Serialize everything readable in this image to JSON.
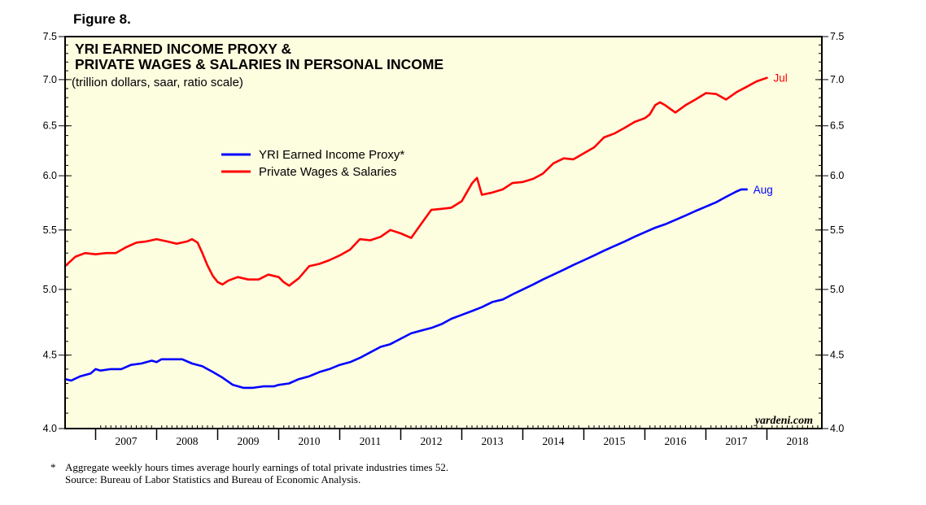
{
  "figure_label": "Figure 8.",
  "colors": {
    "plot_bg": "#fdfde0",
    "proxy": "#0000ff",
    "wages": "#ff0000"
  },
  "chart_data": {
    "type": "line",
    "title": "YRI EARNED INCOME PROXY &",
    "title_line2": "PRIVATE WAGES & SALARIES IN PERSONAL INCOME",
    "subtitle": "(trillion dollars, saar, ratio scale)",
    "y_scale": "log",
    "ylim": [
      4.0,
      7.5
    ],
    "yticks": [
      "4.0",
      "4.5",
      "5.0",
      "5.5",
      "6.0",
      "6.5",
      "7.0",
      "7.5"
    ],
    "xlim": [
      2006.5,
      2018.9
    ],
    "x_tick_labels": [
      "2007",
      "2008",
      "2009",
      "2010",
      "2011",
      "2012",
      "2013",
      "2014",
      "2015",
      "2016",
      "2017",
      "2018"
    ],
    "legend_position": "upper-left",
    "brand": "yardeni.com",
    "series": [
      {
        "name": "YRI Earned Income Proxy*",
        "color": "#0000ff",
        "end_label": "Aug",
        "points": [
          [
            2006.5,
            4.33
          ],
          [
            2006.6,
            4.32
          ],
          [
            2006.75,
            4.35
          ],
          [
            2006.92,
            4.37
          ],
          [
            2007.0,
            4.4
          ],
          [
            2007.08,
            4.39
          ],
          [
            2007.25,
            4.4
          ],
          [
            2007.42,
            4.4
          ],
          [
            2007.58,
            4.43
          ],
          [
            2007.75,
            4.44
          ],
          [
            2007.92,
            4.46
          ],
          [
            2008.0,
            4.45
          ],
          [
            2008.08,
            4.47
          ],
          [
            2008.25,
            4.47
          ],
          [
            2008.42,
            4.47
          ],
          [
            2008.58,
            4.44
          ],
          [
            2008.75,
            4.42
          ],
          [
            2008.92,
            4.38
          ],
          [
            2009.0,
            4.36
          ],
          [
            2009.08,
            4.34
          ],
          [
            2009.25,
            4.29
          ],
          [
            2009.42,
            4.27
          ],
          [
            2009.58,
            4.27
          ],
          [
            2009.75,
            4.28
          ],
          [
            2009.92,
            4.28
          ],
          [
            2010.0,
            4.29
          ],
          [
            2010.17,
            4.3
          ],
          [
            2010.33,
            4.33
          ],
          [
            2010.5,
            4.35
          ],
          [
            2010.67,
            4.38
          ],
          [
            2010.83,
            4.4
          ],
          [
            2011.0,
            4.43
          ],
          [
            2011.17,
            4.45
          ],
          [
            2011.33,
            4.48
          ],
          [
            2011.5,
            4.52
          ],
          [
            2011.67,
            4.56
          ],
          [
            2011.83,
            4.58
          ],
          [
            2012.0,
            4.62
          ],
          [
            2012.17,
            4.66
          ],
          [
            2012.33,
            4.68
          ],
          [
            2012.5,
            4.7
          ],
          [
            2012.67,
            4.73
          ],
          [
            2012.83,
            4.77
          ],
          [
            2013.0,
            4.8
          ],
          [
            2013.17,
            4.83
          ],
          [
            2013.33,
            4.86
          ],
          [
            2013.5,
            4.9
          ],
          [
            2013.67,
            4.92
          ],
          [
            2013.83,
            4.96
          ],
          [
            2014.0,
            5.0
          ],
          [
            2014.17,
            5.04
          ],
          [
            2014.33,
            5.08
          ],
          [
            2014.5,
            5.12
          ],
          [
            2014.67,
            5.16
          ],
          [
            2014.83,
            5.2
          ],
          [
            2015.0,
            5.24
          ],
          [
            2015.17,
            5.28
          ],
          [
            2015.33,
            5.32
          ],
          [
            2015.5,
            5.36
          ],
          [
            2015.67,
            5.4
          ],
          [
            2015.83,
            5.44
          ],
          [
            2016.0,
            5.48
          ],
          [
            2016.17,
            5.52
          ],
          [
            2016.33,
            5.55
          ],
          [
            2016.5,
            5.59
          ],
          [
            2016.67,
            5.63
          ],
          [
            2016.83,
            5.67
          ],
          [
            2017.0,
            5.71
          ],
          [
            2017.17,
            5.75
          ],
          [
            2017.33,
            5.8
          ],
          [
            2017.5,
            5.85
          ],
          [
            2017.58,
            5.87
          ],
          [
            2017.67,
            5.87
          ]
        ]
      },
      {
        "name": "Private Wages & Salaries",
        "color": "#ff0000",
        "end_label": "Jul",
        "points": [
          [
            2006.5,
            5.19
          ],
          [
            2006.67,
            5.27
          ],
          [
            2006.83,
            5.3
          ],
          [
            2007.0,
            5.29
          ],
          [
            2007.17,
            5.3
          ],
          [
            2007.33,
            5.3
          ],
          [
            2007.5,
            5.35
          ],
          [
            2007.67,
            5.39
          ],
          [
            2007.83,
            5.4
          ],
          [
            2008.0,
            5.42
          ],
          [
            2008.17,
            5.4
          ],
          [
            2008.33,
            5.38
          ],
          [
            2008.5,
            5.4
          ],
          [
            2008.58,
            5.42
          ],
          [
            2008.67,
            5.39
          ],
          [
            2008.75,
            5.3
          ],
          [
            2008.83,
            5.2
          ],
          [
            2008.92,
            5.11
          ],
          [
            2009.0,
            5.06
          ],
          [
            2009.08,
            5.04
          ],
          [
            2009.17,
            5.07
          ],
          [
            2009.33,
            5.1
          ],
          [
            2009.5,
            5.08
          ],
          [
            2009.67,
            5.08
          ],
          [
            2009.83,
            5.12
          ],
          [
            2010.0,
            5.1
          ],
          [
            2010.08,
            5.06
          ],
          [
            2010.17,
            5.03
          ],
          [
            2010.33,
            5.09
          ],
          [
            2010.5,
            5.19
          ],
          [
            2010.67,
            5.21
          ],
          [
            2010.83,
            5.24
          ],
          [
            2011.0,
            5.28
          ],
          [
            2011.17,
            5.33
          ],
          [
            2011.33,
            5.42
          ],
          [
            2011.5,
            5.41
          ],
          [
            2011.67,
            5.44
          ],
          [
            2011.83,
            5.5
          ],
          [
            2012.0,
            5.47
          ],
          [
            2012.17,
            5.43
          ],
          [
            2012.33,
            5.55
          ],
          [
            2012.5,
            5.68
          ],
          [
            2012.67,
            5.69
          ],
          [
            2012.83,
            5.7
          ],
          [
            2013.0,
            5.76
          ],
          [
            2013.08,
            5.84
          ],
          [
            2013.17,
            5.93
          ],
          [
            2013.25,
            5.98
          ],
          [
            2013.33,
            5.82
          ],
          [
            2013.5,
            5.84
          ],
          [
            2013.67,
            5.87
          ],
          [
            2013.83,
            5.93
          ],
          [
            2014.0,
            5.94
          ],
          [
            2014.17,
            5.97
          ],
          [
            2014.33,
            6.02
          ],
          [
            2014.5,
            6.12
          ],
          [
            2014.67,
            6.17
          ],
          [
            2014.83,
            6.16
          ],
          [
            2015.0,
            6.22
          ],
          [
            2015.17,
            6.28
          ],
          [
            2015.33,
            6.38
          ],
          [
            2015.5,
            6.42
          ],
          [
            2015.67,
            6.48
          ],
          [
            2015.83,
            6.54
          ],
          [
            2016.0,
            6.58
          ],
          [
            2016.08,
            6.62
          ],
          [
            2016.17,
            6.72
          ],
          [
            2016.25,
            6.75
          ],
          [
            2016.33,
            6.72
          ],
          [
            2016.5,
            6.64
          ],
          [
            2016.67,
            6.72
          ],
          [
            2016.83,
            6.78
          ],
          [
            2017.0,
            6.85
          ],
          [
            2017.17,
            6.84
          ],
          [
            2017.33,
            6.78
          ],
          [
            2017.5,
            6.86
          ],
          [
            2017.67,
            6.92
          ],
          [
            2017.83,
            6.98
          ],
          [
            2018.0,
            7.02
          ]
        ]
      }
    ]
  },
  "footnote": {
    "star": "*",
    "text": "Aggregate weekly hours times average hourly earnings of total private industries times 52.",
    "source": "Source: Bureau of Labor Statistics and Bureau of Economic Analysis."
  }
}
